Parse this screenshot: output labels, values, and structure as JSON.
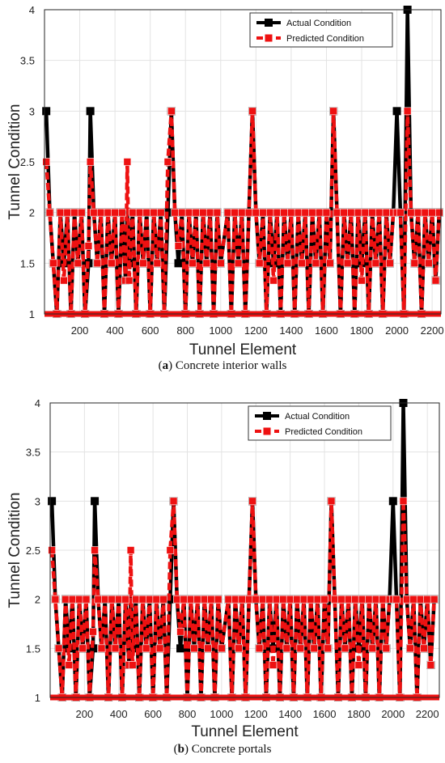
{
  "chart_data": [
    {
      "type": "line",
      "panel_letter": "a",
      "caption": "Concrete interior walls",
      "xlabel": "Tunnel Element",
      "ylabel": "Tunnel Condition",
      "xlim": [
        0,
        2250
      ],
      "ylim": [
        1,
        4
      ],
      "xticks": [
        200,
        400,
        600,
        800,
        1000,
        1200,
        1400,
        1600,
        1800,
        2000,
        2200
      ],
      "yticks": [
        1,
        1.5,
        2,
        2.5,
        3,
        3.5,
        4
      ],
      "grid": true,
      "legend_position": "top-right",
      "series": [
        {
          "name": "Actual Condition",
          "color": "#000000",
          "x": [
            10,
            30,
            50,
            70,
            90,
            110,
            130,
            150,
            170,
            190,
            210,
            230,
            250,
            260,
            280,
            300,
            320,
            340,
            360,
            380,
            400,
            420,
            440,
            460,
            470,
            480,
            500,
            520,
            540,
            560,
            580,
            600,
            620,
            640,
            660,
            680,
            700,
            720,
            740,
            760,
            780,
            800,
            820,
            840,
            860,
            880,
            900,
            920,
            940,
            960,
            980,
            1000,
            1040,
            1060,
            1080,
            1100,
            1120,
            1140,
            1160,
            1180,
            1200,
            1220,
            1240,
            1260,
            1280,
            1300,
            1320,
            1340,
            1360,
            1380,
            1400,
            1420,
            1440,
            1460,
            1480,
            1500,
            1520,
            1540,
            1560,
            1580,
            1600,
            1620,
            1640,
            1660,
            1680,
            1700,
            1720,
            1740,
            1760,
            1780,
            1800,
            1820,
            1840,
            1860,
            1880,
            1900,
            1920,
            1940,
            1960,
            1980,
            2000,
            2020,
            2040,
            2060,
            2080,
            2100,
            2120,
            2140,
            2160,
            2180,
            2200,
            2220,
            2240
          ],
          "y": [
            3,
            2,
            1.5,
            1,
            2,
            1.5,
            2,
            1,
            2,
            1.5,
            2,
            1,
            1.5,
            3,
            2,
            1.5,
            2,
            1,
            2,
            1.5,
            2,
            1,
            2,
            1.33,
            2,
            1.5,
            2,
            1,
            2,
            1.5,
            2,
            1,
            2,
            1.5,
            2,
            1,
            2,
            3,
            2,
            1.5,
            2,
            1,
            2,
            1.5,
            2,
            1,
            2,
            1.5,
            2,
            1,
            2,
            1.5,
            2,
            1,
            2,
            1.5,
            2,
            1,
            2,
            3,
            2,
            1.5,
            2,
            1,
            2,
            1.5,
            2,
            1,
            2,
            1.5,
            2,
            1,
            2,
            1.5,
            2,
            1,
            2,
            1.5,
            2,
            1,
            2,
            1.5,
            3,
            2,
            1,
            2,
            1.5,
            2,
            1,
            2,
            1.5,
            2,
            1,
            2,
            1.5,
            2,
            1,
            2,
            1.5,
            2,
            3,
            2,
            1,
            4,
            2,
            1.5,
            2,
            1,
            2,
            1.5,
            2,
            1.33,
            2
          ]
        },
        {
          "name": "Predicted Condition",
          "color": "#ee1111",
          "x": [
            10,
            30,
            50,
            70,
            90,
            110,
            130,
            150,
            170,
            190,
            210,
            230,
            250,
            260,
            280,
            300,
            320,
            340,
            360,
            380,
            400,
            420,
            440,
            460,
            470,
            480,
            500,
            520,
            540,
            560,
            580,
            600,
            620,
            640,
            660,
            680,
            700,
            720,
            740,
            760,
            780,
            800,
            820,
            840,
            860,
            880,
            900,
            920,
            940,
            960,
            980,
            1000,
            1040,
            1060,
            1080,
            1100,
            1120,
            1140,
            1160,
            1180,
            1200,
            1220,
            1240,
            1260,
            1280,
            1300,
            1320,
            1340,
            1360,
            1380,
            1400,
            1420,
            1440,
            1460,
            1480,
            1500,
            1520,
            1540,
            1560,
            1580,
            1600,
            1620,
            1640,
            1660,
            1680,
            1700,
            1720,
            1740,
            1760,
            1780,
            1800,
            1820,
            1840,
            1860,
            1880,
            1900,
            1920,
            1940,
            1960,
            1980,
            2000,
            2020,
            2040,
            2060,
            2080,
            2100,
            2120,
            2140,
            2160,
            2180,
            2200,
            2220,
            2240
          ],
          "y": [
            2.5,
            2,
            1.5,
            1,
            2,
            1.33,
            2,
            1,
            2,
            1.5,
            2,
            1,
            1.67,
            2.5,
            2,
            1.5,
            2,
            1,
            2,
            1.5,
            2,
            1,
            2,
            1.33,
            2.5,
            1.33,
            2,
            1,
            2,
            1.5,
            2,
            1,
            2,
            1.5,
            2,
            1,
            2.5,
            3,
            2,
            1.67,
            2,
            1,
            2,
            1.5,
            2,
            1,
            2,
            1.5,
            2,
            1,
            2,
            1.5,
            2,
            1,
            2,
            1.5,
            2,
            1,
            2,
            3,
            2,
            1.5,
            2,
            1,
            2,
            1.33,
            2,
            1,
            2,
            1.5,
            2,
            1,
            2,
            1.5,
            2,
            1,
            2,
            1.5,
            2,
            1,
            2,
            1.5,
            3,
            2,
            1,
            2,
            1.5,
            2,
            1,
            2,
            1.33,
            2,
            1,
            2,
            1.5,
            2,
            1,
            2,
            1.5,
            2,
            2,
            2,
            1,
            3,
            2,
            1.5,
            2,
            1,
            2,
            1.5,
            2,
            1.33,
            2
          ]
        }
      ]
    },
    {
      "type": "line",
      "panel_letter": "b",
      "caption": "Concrete portals",
      "xlabel": "Tunnel Element",
      "ylabel": "Tunnel Condition",
      "xlim": [
        0,
        2270
      ],
      "ylim": [
        1,
        4
      ],
      "xticks": [
        200,
        400,
        600,
        800,
        1000,
        1200,
        1400,
        1600,
        1800,
        2000,
        2200
      ],
      "yticks": [
        1,
        1.5,
        2,
        2.5,
        3,
        3.5,
        4
      ],
      "grid": true,
      "legend_position": "top-right",
      "series": [
        {
          "name": "Actual Condition",
          "color": "#000000",
          "x": [
            10,
            30,
            50,
            70,
            90,
            110,
            130,
            150,
            170,
            190,
            210,
            230,
            250,
            260,
            280,
            300,
            320,
            340,
            360,
            380,
            400,
            420,
            440,
            460,
            470,
            480,
            500,
            520,
            540,
            560,
            580,
            600,
            620,
            640,
            660,
            680,
            700,
            720,
            740,
            760,
            780,
            800,
            820,
            840,
            860,
            880,
            900,
            920,
            940,
            960,
            980,
            1000,
            1040,
            1060,
            1080,
            1100,
            1120,
            1140,
            1160,
            1180,
            1200,
            1220,
            1240,
            1260,
            1280,
            1300,
            1320,
            1340,
            1360,
            1380,
            1400,
            1420,
            1440,
            1460,
            1480,
            1500,
            1520,
            1540,
            1560,
            1580,
            1600,
            1620,
            1640,
            1660,
            1680,
            1700,
            1720,
            1740,
            1760,
            1780,
            1800,
            1820,
            1840,
            1860,
            1880,
            1900,
            1920,
            1940,
            1960,
            1980,
            2000,
            2020,
            2040,
            2060,
            2080,
            2100,
            2120,
            2140,
            2160,
            2180,
            2200,
            2220,
            2240
          ],
          "y": [
            3,
            2,
            1.5,
            1,
            2,
            1.5,
            2,
            1,
            2,
            1.5,
            2,
            1,
            1.5,
            3,
            2,
            1.5,
            2,
            1,
            2,
            1.5,
            2,
            1,
            2,
            1.33,
            2,
            1.5,
            2,
            1,
            2,
            1.5,
            2,
            1,
            2,
            1.5,
            2,
            1,
            2,
            3,
            2,
            1.5,
            2,
            1,
            2,
            1.5,
            2,
            1,
            2,
            1.5,
            2,
            1,
            2,
            1.5,
            2,
            1,
            2,
            1.5,
            2,
            1,
            2,
            3,
            2,
            1.5,
            2,
            1,
            2,
            1.5,
            2,
            1,
            2,
            1.5,
            2,
            1,
            2,
            1.5,
            2,
            1,
            2,
            1.5,
            2,
            1,
            2,
            1.5,
            3,
            2,
            1,
            2,
            1.5,
            2,
            1,
            2,
            1.5,
            2,
            1,
            2,
            1.5,
            2,
            1,
            2,
            1.5,
            2,
            3,
            2,
            1,
            4,
            2,
            1.5,
            2,
            1,
            2,
            1.5,
            2,
            1.33,
            2
          ]
        },
        {
          "name": "Predicted Condition",
          "color": "#ee1111",
          "x": [
            10,
            30,
            50,
            70,
            90,
            110,
            130,
            150,
            170,
            190,
            210,
            230,
            250,
            260,
            280,
            300,
            320,
            340,
            360,
            380,
            400,
            420,
            440,
            460,
            470,
            480,
            500,
            520,
            540,
            560,
            580,
            600,
            620,
            640,
            660,
            680,
            700,
            720,
            740,
            760,
            780,
            800,
            820,
            840,
            860,
            880,
            900,
            920,
            940,
            960,
            980,
            1000,
            1040,
            1060,
            1080,
            1100,
            1120,
            1140,
            1160,
            1180,
            1200,
            1220,
            1240,
            1260,
            1280,
            1300,
            1320,
            1340,
            1360,
            1380,
            1400,
            1420,
            1440,
            1460,
            1480,
            1500,
            1520,
            1540,
            1560,
            1580,
            1600,
            1620,
            1640,
            1660,
            1680,
            1700,
            1720,
            1740,
            1760,
            1780,
            1800,
            1820,
            1840,
            1860,
            1880,
            1900,
            1920,
            1940,
            1960,
            1980,
            2000,
            2020,
            2040,
            2060,
            2080,
            2100,
            2120,
            2140,
            2160,
            2180,
            2200,
            2220,
            2240
          ],
          "y": [
            2.5,
            2,
            1.5,
            1,
            2,
            1.33,
            2,
            1,
            2,
            1.5,
            2,
            1,
            1.67,
            2.5,
            2,
            1.5,
            2,
            1,
            2,
            1.5,
            2,
            1,
            2,
            1.33,
            2.5,
            1.33,
            2,
            1,
            2,
            1.5,
            2,
            1,
            2,
            1.5,
            2,
            1,
            2.5,
            3,
            2,
            1.67,
            2,
            1,
            2,
            1.5,
            2,
            1,
            2,
            1.5,
            2,
            1,
            2,
            1.5,
            2,
            1,
            2,
            1.5,
            2,
            1,
            2,
            3,
            2,
            1.5,
            2,
            1,
            2,
            1.33,
            2,
            1,
            2,
            1.5,
            2,
            1,
            2,
            1.5,
            2,
            1,
            2,
            1.5,
            2,
            1,
            2,
            1.5,
            3,
            2,
            1,
            2,
            1.5,
            2,
            1,
            2,
            1.33,
            2,
            1,
            2,
            1.5,
            2,
            1,
            2,
            1.5,
            2,
            2,
            2,
            1,
            3,
            2,
            1.5,
            2,
            1,
            2,
            1.5,
            2,
            1.33,
            2
          ]
        }
      ]
    }
  ]
}
